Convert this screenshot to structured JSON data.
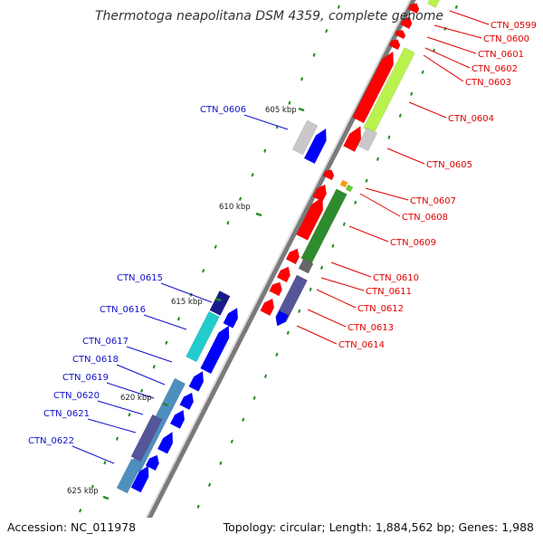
{
  "title": "Thermotoga neapolitana DSM 4359, complete genome",
  "footer": {
    "accession": "Accession: NC_011978",
    "topology": "Topology: circular; Length: 1,884,562 bp; Genes: 1,988"
  },
  "colors": {
    "backbone": "#8c8c8c",
    "forward": "#ff0000",
    "reverse": "#0000ff",
    "tick": "#1e8c1e",
    "label_forward": "#e00000",
    "label_reverse": "#1010cc"
  },
  "position_markers": [
    "605 kbp",
    "610 kbp",
    "615 kbp",
    "620 kbp",
    "625 kbp"
  ],
  "genes_forward": [
    "CTN_0599",
    "CTN_0600",
    "CTN_0601",
    "CTN_0602",
    "CTN_0603",
    "CTN_0604",
    "CTN_0605",
    "CTN_0607",
    "CTN_0608",
    "CTN_0609",
    "CTN_0610",
    "CTN_0611",
    "CTN_0612",
    "CTN_0613",
    "CTN_0614"
  ],
  "genes_reverse": [
    "CTN_0606",
    "CTN_0615",
    "CTN_0616",
    "CTN_0617",
    "CTN_0618",
    "CTN_0619",
    "CTN_0620",
    "CTN_0621",
    "CTN_0622"
  ]
}
